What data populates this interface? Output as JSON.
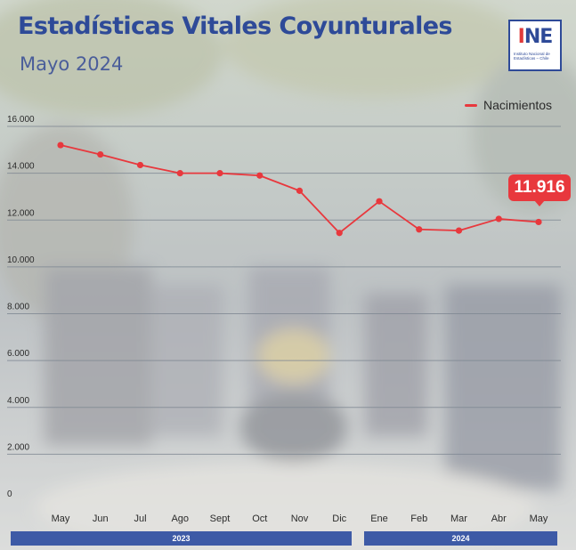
{
  "header": {
    "title": "Estadísticas Vitales Coyunturales",
    "subtitle": "Mayo 2024"
  },
  "logo": {
    "mark": "INE",
    "mark_accent": "I",
    "mark_rest": "NE",
    "text": "Instituto Nacional de Estadísticas – Chile"
  },
  "colors": {
    "title": "#2e4a98",
    "subtitle": "#4a5d9a",
    "line": "#e8383d",
    "axis_text": "#2b2b2b",
    "grid": "#7e8792",
    "year_bar": "#3d5aa6"
  },
  "chart_data": {
    "type": "line",
    "categories": [
      "May",
      "Jun",
      "Jul",
      "Ago",
      "Sept",
      "Oct",
      "Nov",
      "Dic",
      "Ene",
      "Feb",
      "Mar",
      "Abr",
      "May"
    ],
    "series": [
      {
        "name": "Nacimientos",
        "values": [
          15200,
          14800,
          14350,
          14000,
          14000,
          13900,
          13250,
          11450,
          12800,
          11600,
          11550,
          12050,
          11916
        ]
      }
    ],
    "y_ticks": [
      "16.000",
      "14.000",
      "12.000",
      "10.000",
      "8.000",
      "6.000",
      "4.000",
      "2.000",
      "0"
    ],
    "ylim": [
      0,
      16000
    ],
    "grid": true,
    "legend_position": "top-right",
    "groups": [
      {
        "label": "2023",
        "categories": [
          "May",
          "Jun",
          "Jul",
          "Ago",
          "Sept",
          "Oct",
          "Nov",
          "Dic"
        ]
      },
      {
        "label": "2024",
        "categories": [
          "Ene",
          "Feb",
          "Mar",
          "Abr",
          "May"
        ]
      }
    ],
    "annotation": {
      "label": "11.916",
      "category": "May",
      "value": 11916
    }
  }
}
